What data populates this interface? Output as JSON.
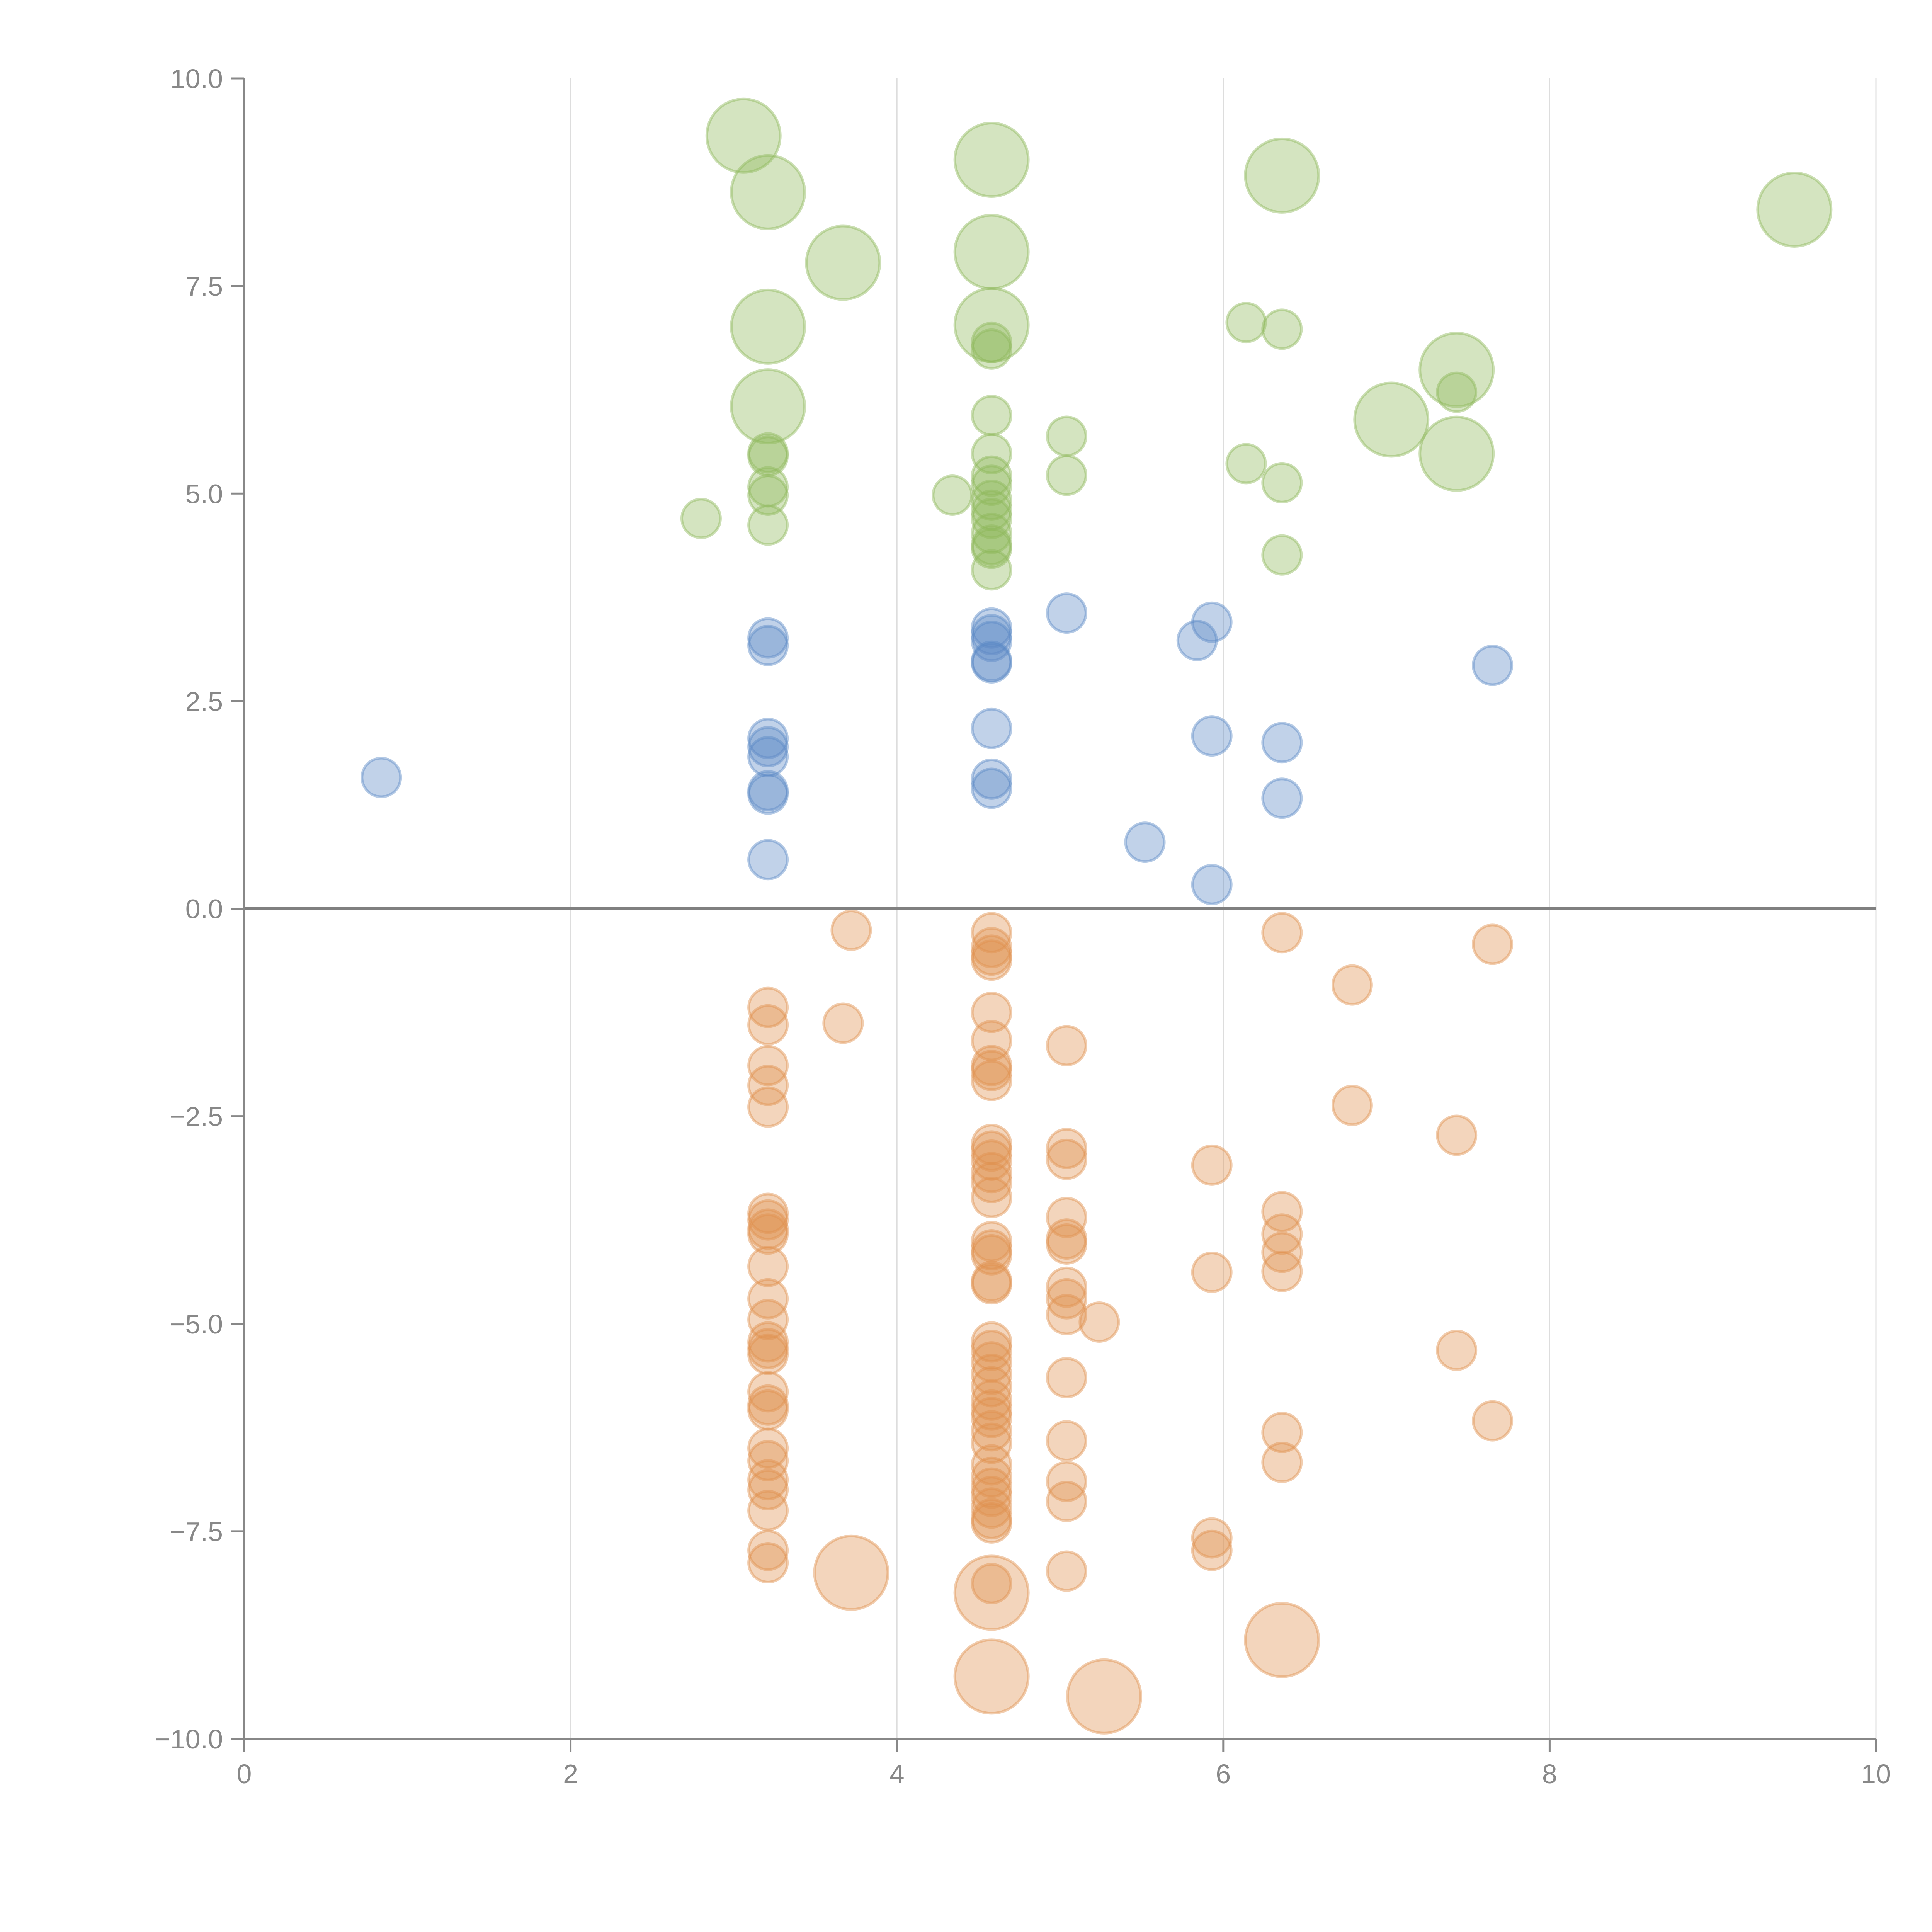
{
  "chart_data": {
    "type": "scatter",
    "title": "",
    "xlabel": "",
    "ylabel": "",
    "xlim": [
      0,
      10
    ],
    "ylim": [
      -10,
      10
    ],
    "x_ticks": [
      "0",
      "2",
      "4",
      "6",
      "8",
      "10"
    ],
    "y_ticks": [
      "10.0",
      "7.5",
      "5.0",
      "2.5",
      "0.0",
      "−2.5",
      "−5.0",
      "−7.5",
      "−10.0"
    ],
    "grid": "vertical",
    "zero_line": true,
    "series": [
      {
        "name": "green",
        "color": "#8db85a",
        "points": [
          {
            "x": 3.06,
            "y": 9.31,
            "size": "large"
          },
          {
            "x": 3.21,
            "y": 8.63,
            "size": "large"
          },
          {
            "x": 3.67,
            "y": 7.78,
            "size": "large"
          },
          {
            "x": 3.21,
            "y": 7.01,
            "size": "large"
          },
          {
            "x": 3.21,
            "y": 6.05,
            "size": "large"
          },
          {
            "x": 4.58,
            "y": 9.02,
            "size": "large"
          },
          {
            "x": 4.58,
            "y": 7.91,
            "size": "large"
          },
          {
            "x": 4.58,
            "y": 7.03,
            "size": "large"
          },
          {
            "x": 6.36,
            "y": 8.83,
            "size": "large"
          },
          {
            "x": 7.43,
            "y": 6.49,
            "size": "large"
          },
          {
            "x": 7.03,
            "y": 5.89,
            "size": "large"
          },
          {
            "x": 7.43,
            "y": 5.48,
            "size": "large"
          },
          {
            "x": 9.5,
            "y": 8.42,
            "size": "large"
          },
          {
            "x": 4.58,
            "y": 6.82,
            "size": "small"
          },
          {
            "x": 4.58,
            "y": 6.74,
            "size": "small"
          },
          {
            "x": 6.14,
            "y": 7.06,
            "size": "small"
          },
          {
            "x": 6.36,
            "y": 6.98,
            "size": "small"
          },
          {
            "x": 7.43,
            "y": 6.22,
            "size": "small"
          },
          {
            "x": 4.58,
            "y": 5.94,
            "size": "small"
          },
          {
            "x": 5.04,
            "y": 5.69,
            "size": "small"
          },
          {
            "x": 3.21,
            "y": 5.49,
            "size": "small"
          },
          {
            "x": 3.21,
            "y": 5.45,
            "size": "small"
          },
          {
            "x": 4.58,
            "y": 5.48,
            "size": "small"
          },
          {
            "x": 6.14,
            "y": 5.36,
            "size": "small"
          },
          {
            "x": 4.58,
            "y": 5.21,
            "size": "small"
          },
          {
            "x": 5.04,
            "y": 5.22,
            "size": "small"
          },
          {
            "x": 4.58,
            "y": 5.1,
            "size": "small"
          },
          {
            "x": 6.36,
            "y": 5.13,
            "size": "small"
          },
          {
            "x": 3.21,
            "y": 5.08,
            "size": "small"
          },
          {
            "x": 3.21,
            "y": 4.98,
            "size": "small"
          },
          {
            "x": 4.34,
            "y": 4.98,
            "size": "small"
          },
          {
            "x": 4.58,
            "y": 4.92,
            "size": "small"
          },
          {
            "x": 4.58,
            "y": 4.8,
            "size": "small"
          },
          {
            "x": 2.8,
            "y": 4.7,
            "size": "small"
          },
          {
            "x": 4.58,
            "y": 4.7,
            "size": "small"
          },
          {
            "x": 3.21,
            "y": 4.62,
            "size": "small"
          },
          {
            "x": 4.58,
            "y": 4.52,
            "size": "small"
          },
          {
            "x": 4.58,
            "y": 4.38,
            "size": "small"
          },
          {
            "x": 4.58,
            "y": 4.34,
            "size": "small"
          },
          {
            "x": 6.36,
            "y": 4.26,
            "size": "small"
          },
          {
            "x": 4.58,
            "y": 4.08,
            "size": "small"
          }
        ]
      },
      {
        "name": "blue",
        "color": "#5b8ac6",
        "points": [
          {
            "x": 5.04,
            "y": 3.56
          },
          {
            "x": 5.93,
            "y": 3.45
          },
          {
            "x": 4.58,
            "y": 3.38
          },
          {
            "x": 4.58,
            "y": 3.3
          },
          {
            "x": 3.21,
            "y": 3.26
          },
          {
            "x": 5.84,
            "y": 3.23
          },
          {
            "x": 4.58,
            "y": 3.22
          },
          {
            "x": 3.21,
            "y": 3.17
          },
          {
            "x": 4.58,
            "y": 2.98
          },
          {
            "x": 4.58,
            "y": 2.96
          },
          {
            "x": 7.65,
            "y": 2.93
          },
          {
            "x": 4.58,
            "y": 2.17
          },
          {
            "x": 5.93,
            "y": 2.08
          },
          {
            "x": 3.21,
            "y": 2.05
          },
          {
            "x": 6.36,
            "y": 2.0
          },
          {
            "x": 3.21,
            "y": 1.95
          },
          {
            "x": 3.21,
            "y": 1.83
          },
          {
            "x": 0.84,
            "y": 1.58
          },
          {
            "x": 4.58,
            "y": 1.56
          },
          {
            "x": 4.58,
            "y": 1.45
          },
          {
            "x": 3.21,
            "y": 1.42
          },
          {
            "x": 3.21,
            "y": 1.38
          },
          {
            "x": 6.36,
            "y": 1.33
          },
          {
            "x": 5.52,
            "y": 0.8
          },
          {
            "x": 3.21,
            "y": 0.59
          },
          {
            "x": 5.93,
            "y": 0.29
          }
        ]
      },
      {
        "name": "orange",
        "color": "#e0914e",
        "points": [
          {
            "x": 3.72,
            "y": -8.0,
            "size": "large"
          },
          {
            "x": 4.58,
            "y": -8.24,
            "size": "large"
          },
          {
            "x": 4.58,
            "y": -9.25,
            "size": "large"
          },
          {
            "x": 5.27,
            "y": -9.49,
            "size": "large"
          },
          {
            "x": 6.36,
            "y": -8.81,
            "size": "large"
          },
          {
            "x": 3.72,
            "y": -0.26
          },
          {
            "x": 4.58,
            "y": -0.29
          },
          {
            "x": 6.36,
            "y": -0.29
          },
          {
            "x": 7.65,
            "y": -0.43
          },
          {
            "x": 4.58,
            "y": -0.47
          },
          {
            "x": 4.58,
            "y": -0.56
          },
          {
            "x": 4.58,
            "y": -0.62
          },
          {
            "x": 6.79,
            "y": -0.92
          },
          {
            "x": 3.21,
            "y": -1.19
          },
          {
            "x": 4.58,
            "y": -1.25
          },
          {
            "x": 3.67,
            "y": -1.38
          },
          {
            "x": 3.21,
            "y": -1.4
          },
          {
            "x": 4.58,
            "y": -1.59
          },
          {
            "x": 5.04,
            "y": -1.65
          },
          {
            "x": 3.21,
            "y": -1.89
          },
          {
            "x": 4.58,
            "y": -1.89
          },
          {
            "x": 4.58,
            "y": -1.95
          },
          {
            "x": 4.58,
            "y": -2.07
          },
          {
            "x": 3.21,
            "y": -2.13
          },
          {
            "x": 3.21,
            "y": -2.39
          },
          {
            "x": 6.79,
            "y": -2.37
          },
          {
            "x": 7.43,
            "y": -2.73
          },
          {
            "x": 4.58,
            "y": -2.84
          },
          {
            "x": 4.58,
            "y": -2.92
          },
          {
            "x": 5.04,
            "y": -2.89
          },
          {
            "x": 4.58,
            "y": -3.03
          },
          {
            "x": 5.04,
            "y": -3.02
          },
          {
            "x": 5.93,
            "y": -3.09
          },
          {
            "x": 4.58,
            "y": -3.18
          },
          {
            "x": 4.58,
            "y": -3.3
          },
          {
            "x": 4.58,
            "y": -3.48
          },
          {
            "x": 3.21,
            "y": -3.67
          },
          {
            "x": 6.36,
            "y": -3.65
          },
          {
            "x": 3.21,
            "y": -3.75
          },
          {
            "x": 5.04,
            "y": -3.72
          },
          {
            "x": 3.21,
            "y": -3.86
          },
          {
            "x": 6.36,
            "y": -3.92
          },
          {
            "x": 3.21,
            "y": -3.92
          },
          {
            "x": 5.04,
            "y": -3.98
          },
          {
            "x": 4.58,
            "y": -4.01
          },
          {
            "x": 5.04,
            "y": -4.04
          },
          {
            "x": 4.58,
            "y": -4.11
          },
          {
            "x": 6.36,
            "y": -4.14
          },
          {
            "x": 4.58,
            "y": -4.17
          },
          {
            "x": 3.21,
            "y": -4.31
          },
          {
            "x": 5.93,
            "y": -4.38
          },
          {
            "x": 6.36,
            "y": -4.37
          },
          {
            "x": 4.58,
            "y": -4.49
          },
          {
            "x": 4.58,
            "y": -4.52
          },
          {
            "x": 5.04,
            "y": -4.56
          },
          {
            "x": 3.21,
            "y": -4.7
          },
          {
            "x": 5.04,
            "y": -4.7
          },
          {
            "x": 5.04,
            "y": -4.89
          },
          {
            "x": 3.21,
            "y": -4.95
          },
          {
            "x": 5.24,
            "y": -4.98
          },
          {
            "x": 4.58,
            "y": -5.22
          },
          {
            "x": 3.21,
            "y": -5.22
          },
          {
            "x": 3.21,
            "y": -5.3
          },
          {
            "x": 4.58,
            "y": -5.32
          },
          {
            "x": 7.43,
            "y": -5.32
          },
          {
            "x": 3.21,
            "y": -5.37
          },
          {
            "x": 4.58,
            "y": -5.46
          },
          {
            "x": 4.58,
            "y": -5.61
          },
          {
            "x": 5.04,
            "y": -5.65
          },
          {
            "x": 4.58,
            "y": -5.76
          },
          {
            "x": 3.21,
            "y": -5.82
          },
          {
            "x": 4.58,
            "y": -5.92
          },
          {
            "x": 3.21,
            "y": -5.98
          },
          {
            "x": 4.58,
            "y": -6.04
          },
          {
            "x": 3.21,
            "y": -6.04
          },
          {
            "x": 4.58,
            "y": -6.13
          },
          {
            "x": 7.65,
            "y": -6.17
          },
          {
            "x": 4.58,
            "y": -6.29
          },
          {
            "x": 6.36,
            "y": -6.31
          },
          {
            "x": 4.58,
            "y": -6.44
          },
          {
            "x": 5.04,
            "y": -6.41
          },
          {
            "x": 3.21,
            "y": -6.5
          },
          {
            "x": 3.21,
            "y": -6.65
          },
          {
            "x": 4.58,
            "y": -6.7
          },
          {
            "x": 6.36,
            "y": -6.67
          },
          {
            "x": 4.58,
            "y": -6.85
          },
          {
            "x": 3.21,
            "y": -6.88
          },
          {
            "x": 5.04,
            "y": -6.9
          },
          {
            "x": 4.58,
            "y": -6.98
          },
          {
            "x": 3.21,
            "y": -7.0
          },
          {
            "x": 4.58,
            "y": -7.08
          },
          {
            "x": 5.04,
            "y": -7.14
          },
          {
            "x": 4.58,
            "y": -7.22
          },
          {
            "x": 3.21,
            "y": -7.25
          },
          {
            "x": 4.58,
            "y": -7.35
          },
          {
            "x": 4.58,
            "y": -7.4
          },
          {
            "x": 5.93,
            "y": -7.58
          },
          {
            "x": 3.21,
            "y": -7.73
          },
          {
            "x": 5.93,
            "y": -7.73
          },
          {
            "x": 3.21,
            "y": -7.88
          },
          {
            "x": 5.04,
            "y": -7.98
          },
          {
            "x": 4.58,
            "y": -8.13
          }
        ]
      }
    ]
  }
}
